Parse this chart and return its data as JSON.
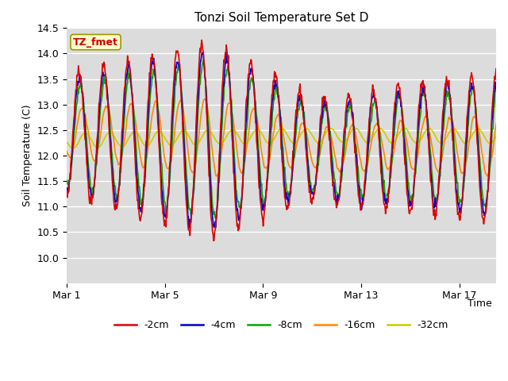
{
  "title": "Tonzi Soil Temperature Set D",
  "ylabel": "Soil Temperature (C)",
  "xlabel": "Time",
  "ylim": [
    9.5,
    14.5
  ],
  "yticks": [
    10.0,
    10.5,
    11.0,
    11.5,
    12.0,
    12.5,
    13.0,
    13.5,
    14.0,
    14.5
  ],
  "xtick_labels": [
    "Mar 1",
    "Mar 5",
    "Mar 9",
    "Mar 13",
    "Mar 17"
  ],
  "xtick_positions": [
    0,
    4,
    8,
    12,
    16
  ],
  "xlim": [
    0,
    17.5
  ],
  "n_days": 18,
  "samples_per_day": 48,
  "bg_color": "#dcdcdc",
  "fig_bg": "#ffffff",
  "line_colors": {
    "-2cm": "#dd0000",
    "-4cm": "#0000cc",
    "-8cm": "#00aa00",
    "-16cm": "#ff8800",
    "-32cm": "#cccc00"
  },
  "line_width": 1.2,
  "label_box_text": "TZ_fmet",
  "label_box_color": "#ffffcc",
  "label_box_edge": "#999900",
  "label_text_color": "#cc0000"
}
